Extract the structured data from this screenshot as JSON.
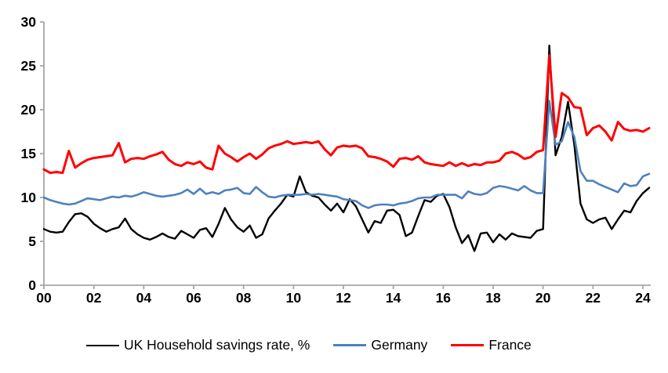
{
  "chart_data": {
    "type": "line",
    "title": "",
    "xlabel": "",
    "ylabel": "",
    "x_unit": "year (quarterly points)",
    "x_start_year": 2000,
    "x_quarter_step": 0.25,
    "xlim": [
      2000,
      2024.45
    ],
    "ylim": [
      0,
      30
    ],
    "y_ticks": [
      0,
      5,
      10,
      15,
      20,
      25,
      30
    ],
    "x_tick_years": [
      2000,
      2002,
      2004,
      2006,
      2008,
      2010,
      2012,
      2014,
      2016,
      2018,
      2020,
      2022,
      2024
    ],
    "x_tick_labels": [
      "00",
      "02",
      "04",
      "06",
      "08",
      "10",
      "12",
      "14",
      "16",
      "18",
      "20",
      "22",
      "24"
    ],
    "grid": "off",
    "legend_position": "bottom",
    "axis_color": "#a6a6a6",
    "tick_label_color": "#000000",
    "series": [
      {
        "name": "UK Household savings rate, %",
        "color": "#000000",
        "stroke_width": 2.4,
        "values": [
          6.4,
          6.1,
          6.0,
          6.1,
          7.2,
          8.1,
          8.2,
          7.8,
          7.0,
          6.5,
          6.1,
          6.4,
          6.6,
          7.6,
          6.4,
          5.8,
          5.4,
          5.2,
          5.5,
          5.9,
          5.5,
          5.3,
          6.2,
          5.8,
          5.4,
          6.3,
          6.5,
          5.5,
          7.0,
          8.8,
          7.5,
          6.6,
          6.1,
          6.8,
          5.4,
          5.8,
          7.6,
          8.5,
          9.3,
          10.3,
          10.1,
          12.4,
          10.6,
          10.2,
          10.0,
          9.2,
          8.5,
          9.3,
          8.3,
          9.8,
          9.0,
          7.5,
          6.0,
          7.3,
          7.1,
          8.5,
          8.6,
          8.0,
          5.6,
          6.0,
          7.9,
          9.7,
          9.5,
          10.2,
          10.4,
          8.9,
          6.6,
          4.8,
          5.7,
          3.9,
          5.9,
          6.0,
          4.9,
          5.8,
          5.2,
          5.9,
          5.6,
          5.5,
          5.4,
          6.2,
          6.4,
          27.3,
          14.8,
          16.9,
          20.9,
          16.0,
          9.3,
          7.5,
          7.1,
          7.5,
          7.7,
          6.4,
          7.5,
          8.5,
          8.3,
          9.6,
          10.5,
          11.1
        ]
      },
      {
        "name": "Germany",
        "color": "#4F81BD",
        "stroke_width": 2.6,
        "values": [
          10.0,
          9.7,
          9.5,
          9.3,
          9.2,
          9.3,
          9.6,
          9.9,
          9.8,
          9.7,
          9.9,
          10.1,
          10.0,
          10.2,
          10.1,
          10.3,
          10.6,
          10.4,
          10.2,
          10.1,
          10.2,
          10.3,
          10.5,
          10.9,
          10.4,
          11.0,
          10.4,
          10.6,
          10.4,
          10.8,
          10.9,
          11.1,
          10.5,
          10.4,
          11.2,
          10.6,
          10.1,
          10.0,
          10.2,
          10.3,
          10.3,
          10.3,
          10.4,
          10.3,
          10.4,
          10.3,
          10.2,
          10.1,
          9.8,
          9.7,
          9.6,
          9.1,
          8.8,
          9.1,
          9.2,
          9.2,
          9.1,
          9.3,
          9.4,
          9.6,
          9.9,
          10.0,
          10.0,
          10.3,
          10.3,
          10.3,
          10.3,
          9.9,
          10.7,
          10.4,
          10.3,
          10.5,
          11.1,
          11.3,
          11.2,
          11.0,
          10.8,
          11.3,
          10.8,
          10.5,
          10.5,
          21.0,
          16.0,
          16.4,
          18.6,
          16.9,
          13.0,
          11.9,
          11.9,
          11.5,
          11.2,
          10.9,
          10.6,
          11.6,
          11.3,
          11.4,
          12.4,
          12.7
        ]
      },
      {
        "name": "France",
        "color": "#FF0000",
        "stroke_width": 3.0,
        "values": [
          13.2,
          12.8,
          12.9,
          12.8,
          15.3,
          13.4,
          13.9,
          14.3,
          14.5,
          14.6,
          14.7,
          14.8,
          16.2,
          14.0,
          14.4,
          14.5,
          14.4,
          14.7,
          14.9,
          15.2,
          14.3,
          13.8,
          13.6,
          14.0,
          13.8,
          14.1,
          13.4,
          13.2,
          15.9,
          15.0,
          14.6,
          14.1,
          14.6,
          15.0,
          14.4,
          14.9,
          15.6,
          15.9,
          16.1,
          16.4,
          16.1,
          16.2,
          16.3,
          16.2,
          16.4,
          15.5,
          14.8,
          15.7,
          15.9,
          15.8,
          15.9,
          15.6,
          14.7,
          14.6,
          14.4,
          14.1,
          13.5,
          14.4,
          14.5,
          14.3,
          14.7,
          14.0,
          13.8,
          13.7,
          13.6,
          14.0,
          13.6,
          13.9,
          13.6,
          13.8,
          13.7,
          14.0,
          14.0,
          14.2,
          15.0,
          15.2,
          14.9,
          14.4,
          14.6,
          15.2,
          15.4,
          26.2,
          16.9,
          21.9,
          21.4,
          20.3,
          20.2,
          17.1,
          17.9,
          18.2,
          17.5,
          16.5,
          18.6,
          17.8,
          17.6,
          17.7,
          17.5,
          17.9
        ]
      }
    ]
  },
  "legend": {
    "uk_label": "UK Household savings rate, %",
    "germany_label": "Germany",
    "france_label": "France"
  }
}
